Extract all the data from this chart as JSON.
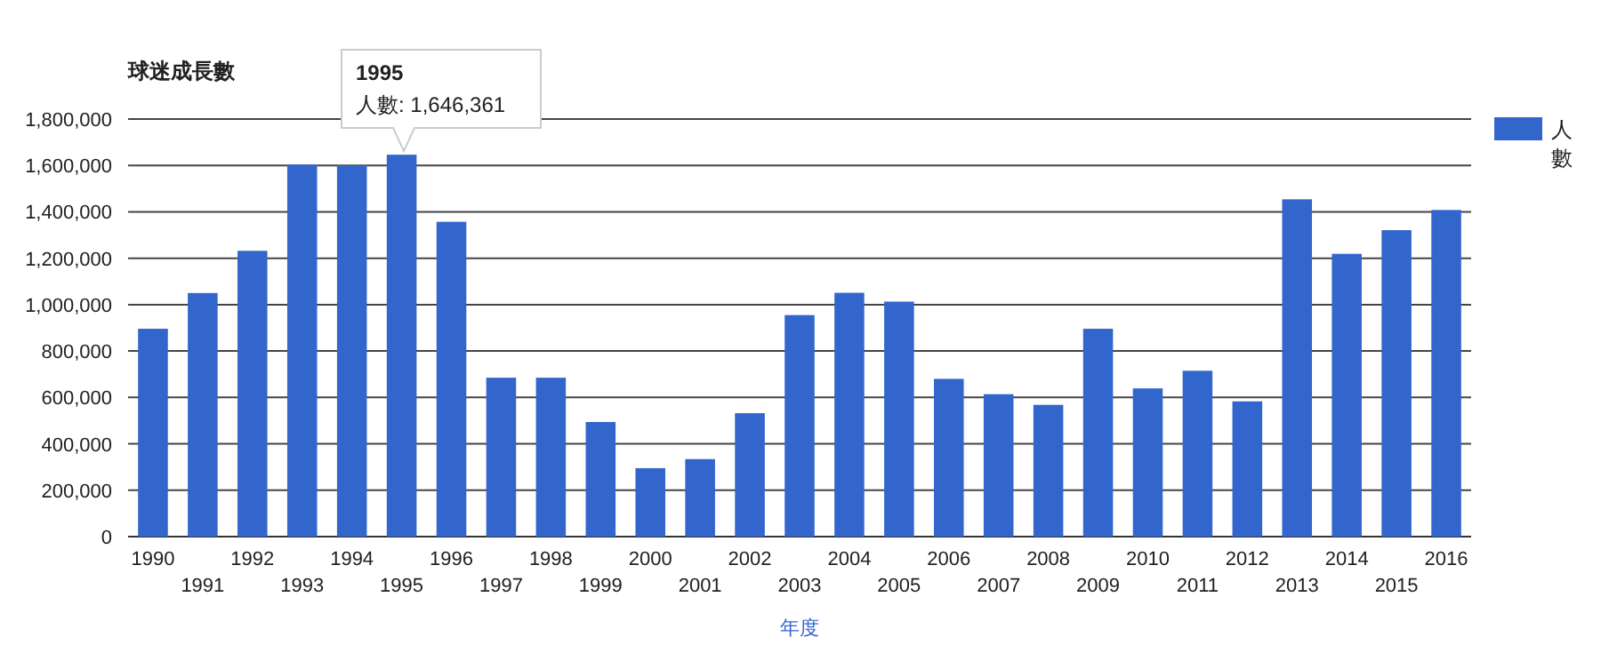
{
  "chart_data": {
    "type": "bar",
    "title": "球迷成長數",
    "xlabel": "年度",
    "categories": [
      "1990",
      "1991",
      "1992",
      "1993",
      "1994",
      "1995",
      "1996",
      "1997",
      "1998",
      "1999",
      "2000",
      "2001",
      "2002",
      "2003",
      "2004",
      "2005",
      "2006",
      "2007",
      "2008",
      "2009",
      "2010",
      "2011",
      "2012",
      "2013",
      "2014",
      "2015",
      "2016"
    ],
    "series": [
      {
        "name": "人數",
        "color": "#3366cc",
        "values": [
          896000,
          1050000,
          1232000,
          1604000,
          1600000,
          1646361,
          1357000,
          685000,
          685000,
          494000,
          295000,
          334000,
          532000,
          955000,
          1051000,
          1013000,
          680000,
          614000,
          568000,
          896000,
          639000,
          715000,
          583000,
          1454000,
          1219000,
          1321000,
          1408000
        ]
      }
    ],
    "ylim": [
      0,
      1800000
    ],
    "yticks": [
      {
        "value": 0,
        "label": "0"
      },
      {
        "value": 200000,
        "label": "200,000"
      },
      {
        "value": 400000,
        "label": "400,000"
      },
      {
        "value": 600000,
        "label": "600,000"
      },
      {
        "value": 800000,
        "label": "800,000"
      },
      {
        "value": 1000000,
        "label": "1,000,000"
      },
      {
        "value": 1200000,
        "label": "1,200,000"
      },
      {
        "value": 1400000,
        "label": "1,400,000"
      },
      {
        "value": 1600000,
        "label": "1,600,000"
      },
      {
        "value": 1800000,
        "label": "1,800,000"
      }
    ],
    "grid": "y",
    "legend": "top right",
    "annotations": [
      "1995",
      "人數: 1,646,361"
    ]
  }
}
